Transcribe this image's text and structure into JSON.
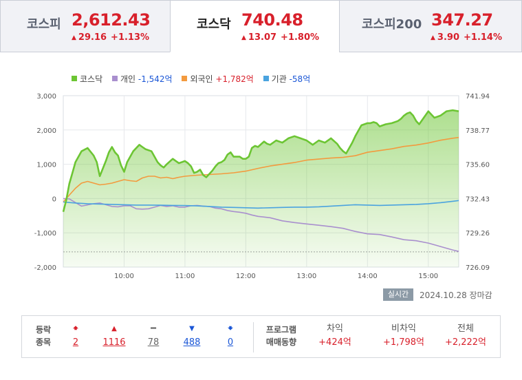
{
  "tabs": [
    {
      "name": "코스피",
      "value": "2,612.43",
      "change": "29.16",
      "change_pct": "+1.13%",
      "direction": "up"
    },
    {
      "name": "코스닥",
      "value": "740.48",
      "change": "13.07",
      "change_pct": "+1.80%",
      "direction": "up",
      "active": true
    },
    {
      "name": "코스피200",
      "value": "347.27",
      "change": "3.90",
      "change_pct": "+1.14%",
      "direction": "up"
    }
  ],
  "legend": {
    "index_name": "코스닥",
    "individual_label": "개인",
    "individual_value": "-1,542억",
    "foreign_label": "외국인",
    "foreign_value": "+1,782억",
    "institution_label": "기관",
    "institution_value": "-58억"
  },
  "colors": {
    "up": "#d8202b",
    "down": "#1a56d6",
    "kosdaq": "#6cc533",
    "individual": "#a98fce",
    "foreign": "#f39a3e",
    "institution": "#4aa3df"
  },
  "chart_data": {
    "type": "area",
    "x_tick_labels": [
      "10:00",
      "11:00",
      "12:00",
      "13:00",
      "14:00",
      "15:00"
    ],
    "x_tick_hours": [
      10,
      11,
      12,
      13,
      14,
      15
    ],
    "x_range": [
      9.0,
      15.5
    ],
    "left_axis_ticks": [
      "3,000",
      "2,000",
      "1,000",
      "0",
      "-1,000",
      "-2,000"
    ],
    "left_ylim": [
      -2000,
      3000
    ],
    "right_axis_ticks": [
      "741.94",
      "738.77",
      "735.60",
      "732.43",
      "729.26",
      "726.09"
    ],
    "right_ylim": [
      726.09,
      741.94
    ],
    "reference_line_right": 727.5,
    "grid": true,
    "legend_position": "top-left",
    "series": [
      {
        "name": "코스닥",
        "axis": "right",
        "x": [
          9.0,
          9.05,
          9.1,
          9.15,
          9.2,
          9.3,
          9.4,
          9.5,
          9.55,
          9.6,
          9.7,
          9.75,
          9.8,
          9.85,
          9.9,
          9.95,
          10.0,
          10.05,
          10.15,
          10.25,
          10.3,
          10.35,
          10.45,
          10.5,
          10.55,
          10.6,
          10.65,
          10.7,
          10.8,
          10.85,
          10.9,
          10.95,
          11.0,
          11.05,
          11.1,
          11.15,
          11.2,
          11.25,
          11.3,
          11.35,
          11.4,
          11.45,
          11.5,
          11.55,
          11.6,
          11.65,
          11.7,
          11.75,
          11.8,
          11.85,
          11.9,
          11.95,
          12.0,
          12.05,
          12.1,
          12.15,
          12.2,
          12.3,
          12.35,
          12.4,
          12.5,
          12.6,
          12.7,
          12.8,
          12.9,
          13.0,
          13.1,
          13.2,
          13.3,
          13.4,
          13.5,
          13.55,
          13.6,
          13.65,
          13.7,
          13.75,
          13.8,
          13.85,
          13.9,
          14.0,
          14.05,
          14.1,
          14.15,
          14.2,
          14.3,
          14.4,
          14.5,
          14.55,
          14.6,
          14.65,
          14.7,
          14.75,
          14.8,
          14.85,
          14.9,
          15.0,
          15.1,
          15.2,
          15.3,
          15.4,
          15.5
        ],
        "y": [
          731.2,
          732.3,
          733.8,
          734.8,
          735.8,
          736.8,
          737.1,
          736.4,
          735.8,
          734.5,
          735.9,
          736.7,
          737.2,
          736.7,
          736.4,
          735.5,
          734.9,
          735.8,
          736.8,
          737.4,
          737.2,
          737.0,
          736.8,
          736.3,
          735.8,
          735.5,
          735.3,
          735.6,
          736.1,
          735.9,
          735.7,
          735.8,
          735.9,
          735.7,
          735.4,
          734.8,
          734.9,
          735.1,
          734.6,
          734.4,
          734.7,
          735.0,
          735.4,
          735.7,
          735.8,
          736.0,
          736.5,
          736.7,
          736.3,
          736.3,
          736.3,
          736.1,
          736.1,
          736.3,
          737.1,
          737.3,
          737.2,
          737.7,
          737.5,
          737.4,
          737.8,
          737.6,
          738.0,
          738.2,
          738.0,
          737.8,
          737.4,
          737.8,
          737.6,
          738.0,
          737.5,
          737.1,
          736.8,
          736.6,
          737.1,
          737.6,
          738.2,
          738.7,
          739.2,
          739.4,
          739.4,
          739.5,
          739.4,
          739.1,
          739.3,
          739.4,
          739.6,
          739.8,
          740.1,
          740.3,
          740.4,
          740.1,
          739.6,
          739.3,
          739.7,
          740.5,
          739.9,
          740.1,
          740.5,
          740.6,
          740.5
        ]
      },
      {
        "name": "개인",
        "axis": "left",
        "x": [
          9.0,
          9.1,
          9.3,
          9.5,
          9.6,
          9.7,
          9.8,
          9.9,
          10.0,
          10.1,
          10.2,
          10.3,
          10.4,
          10.5,
          10.6,
          10.7,
          10.8,
          10.9,
          11.0,
          11.1,
          11.2,
          11.3,
          11.4,
          11.5,
          11.6,
          11.7,
          11.8,
          11.9,
          12.0,
          12.1,
          12.2,
          12.4,
          12.6,
          12.8,
          13.0,
          13.2,
          13.4,
          13.6,
          13.8,
          14.0,
          14.2,
          14.4,
          14.6,
          14.8,
          15.0,
          15.2,
          15.4,
          15.5
        ],
        "y": [
          0,
          -10,
          -220,
          -150,
          -130,
          -180,
          -230,
          -240,
          -210,
          -210,
          -300,
          -310,
          -300,
          -250,
          -200,
          -230,
          -210,
          -250,
          -250,
          -210,
          -200,
          -220,
          -230,
          -280,
          -300,
          -350,
          -380,
          -400,
          -430,
          -480,
          -520,
          -560,
          -650,
          -700,
          -740,
          -780,
          -820,
          -870,
          -960,
          -1030,
          -1050,
          -1120,
          -1200,
          -1230,
          -1300,
          -1400,
          -1500,
          -1542
        ]
      },
      {
        "name": "외국인",
        "axis": "left",
        "x": [
          9.0,
          9.1,
          9.2,
          9.3,
          9.4,
          9.5,
          9.6,
          9.7,
          9.8,
          9.9,
          10.0,
          10.1,
          10.2,
          10.3,
          10.4,
          10.5,
          10.6,
          10.7,
          10.8,
          10.9,
          11.0,
          11.2,
          11.4,
          11.6,
          11.8,
          12.0,
          12.2,
          12.4,
          12.6,
          12.8,
          13.0,
          13.2,
          13.4,
          13.6,
          13.8,
          14.0,
          14.2,
          14.4,
          14.6,
          14.8,
          15.0,
          15.2,
          15.4,
          15.5
        ],
        "y": [
          -100,
          100,
          300,
          450,
          500,
          450,
          400,
          420,
          450,
          500,
          550,
          520,
          500,
          600,
          650,
          650,
          600,
          620,
          580,
          620,
          650,
          680,
          700,
          720,
          750,
          800,
          880,
          950,
          1000,
          1050,
          1120,
          1150,
          1180,
          1200,
          1250,
          1350,
          1400,
          1450,
          1520,
          1560,
          1620,
          1700,
          1760,
          1782
        ]
      },
      {
        "name": "기관",
        "axis": "left",
        "x": [
          9.0,
          9.2,
          9.4,
          9.6,
          9.8,
          10.0,
          10.2,
          10.4,
          10.6,
          10.8,
          11.0,
          11.2,
          11.4,
          11.6,
          11.8,
          12.0,
          12.2,
          12.4,
          12.6,
          12.8,
          13.0,
          13.2,
          13.4,
          13.6,
          13.8,
          14.0,
          14.2,
          14.4,
          14.6,
          14.8,
          15.0,
          15.2,
          15.4,
          15.5
        ],
        "y": [
          -100,
          -130,
          -150,
          -160,
          -170,
          -180,
          -190,
          -190,
          -195,
          -200,
          -205,
          -215,
          -230,
          -250,
          -260,
          -270,
          -280,
          -270,
          -260,
          -250,
          -250,
          -240,
          -220,
          -200,
          -180,
          -190,
          -200,
          -190,
          -180,
          -170,
          -150,
          -120,
          -80,
          -58
        ]
      }
    ]
  },
  "realtime": {
    "badge": "실시간",
    "date": "2024.10.28",
    "session": "장마감"
  },
  "updown": {
    "label_line1": "등락",
    "label_line2": "종목",
    "upper_limit": "2",
    "rise": "1116",
    "unchanged": "78",
    "fall": "488",
    "lower_limit": "0"
  },
  "program": {
    "label_line1": "프로그램",
    "label_line2": "매매동향",
    "arbitrage_label": "차익",
    "arbitrage_value": "+424억",
    "non_arbitrage_label": "비차익",
    "non_arbitrage_value": "+1,798억",
    "total_label": "전체",
    "total_value": "+2,222억"
  }
}
